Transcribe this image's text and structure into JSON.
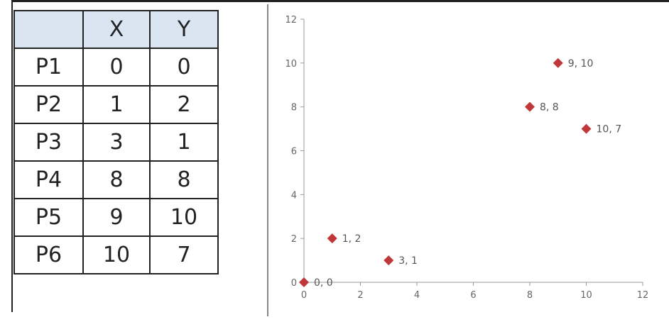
{
  "table": {
    "headers": [
      "",
      "X",
      "Y"
    ],
    "rows": [
      {
        "label": "P1",
        "x": "0",
        "y": "0"
      },
      {
        "label": "P2",
        "x": "1",
        "y": "2"
      },
      {
        "label": "P3",
        "x": "3",
        "y": "1"
      },
      {
        "label": "P4",
        "x": "8",
        "y": "8"
      },
      {
        "label": "P5",
        "x": "9",
        "y": "10"
      },
      {
        "label": "P6",
        "x": "10",
        "y": "7"
      }
    ]
  },
  "chart_data": {
    "type": "scatter",
    "title": "",
    "xlabel": "",
    "ylabel": "",
    "xlim": [
      0,
      12
    ],
    "ylim": [
      0,
      12
    ],
    "x_ticks": [
      0,
      2,
      4,
      6,
      8,
      10,
      12
    ],
    "y_ticks": [
      0,
      2,
      4,
      6,
      8,
      10,
      12
    ],
    "grid": false,
    "legend": "none",
    "marker": "diamond",
    "marker_color": "#c0373a",
    "series": [
      {
        "points": [
          {
            "x": 0,
            "y": 0,
            "label": "0, 0"
          },
          {
            "x": 1,
            "y": 2,
            "label": "1, 2"
          },
          {
            "x": 3,
            "y": 1,
            "label": "3, 1"
          },
          {
            "x": 8,
            "y": 8,
            "label": "8, 8"
          },
          {
            "x": 9,
            "y": 10,
            "label": "9, 10"
          },
          {
            "x": 10,
            "y": 7,
            "label": "10, 7"
          }
        ]
      }
    ]
  }
}
